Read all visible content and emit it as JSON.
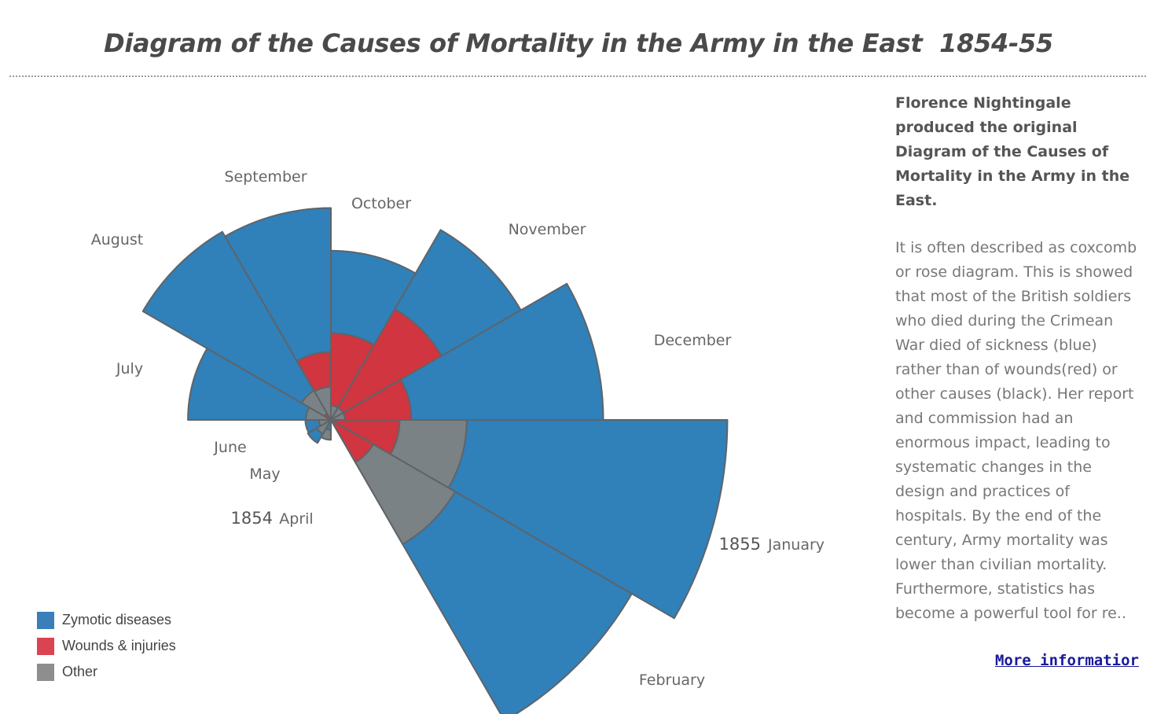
{
  "page": {
    "title": "Diagram of the Causes of Mortality in the Army in the East  1854-55",
    "intro": "Florence Nightingale produced the original Diagram of the Causes of Mortality in the Army in the East.",
    "body": "It is often described as coxcomb or rose diagram. This is showed that most of the British soldiers who died during the Crimean War died of sickness (blue) rather than of wounds(red) or other causes (black). Her report and commission had an enormous impact, leading to systematic changes in the design and practices of hospitals. By the end of the century, Army mortality was lower than civilian mortality. Furthermore, statistics has become a powerful tool for re..",
    "more_link": "More informatior"
  },
  "chart_data": {
    "type": "polar-area",
    "title": "Diagram of the Causes of Mortality in the Army in the East  1854-55",
    "year_labels": [
      {
        "year": "1854",
        "month": "April"
      },
      {
        "year": "1855",
        "month": "January"
      }
    ],
    "categories": [
      "April",
      "May",
      "June",
      "July",
      "August",
      "September",
      "October",
      "November",
      "December",
      "January",
      "February"
    ],
    "series": [
      {
        "name": "Zymotic diseases",
        "color": "#3080BA",
        "values": [
          1.8,
          12.5,
          11.5,
          359,
          828,
          788,
          503,
          845,
          1303,
          2761,
          2120
        ]
      },
      {
        "name": "Wounds & injuries",
        "color": "#D03540",
        "values": [
          0,
          0,
          0,
          0,
          1,
          81,
          132,
          287,
          114,
          83,
          42
        ]
      },
      {
        "name": "Other",
        "color": "#7A8286",
        "values": [
          7,
          4.6,
          2.5,
          11,
          20,
          19,
          3.5,
          3.5,
          3.5,
          324,
          361
        ]
      }
    ],
    "legend": [
      {
        "label": "Zymotic diseases",
        "color": "#3A7FBA"
      },
      {
        "label": "Wounds & injuries",
        "color": "#DA4352"
      },
      {
        "label": "Other",
        "color": "#8E8E8E"
      }
    ],
    "legend_position": "bottom-left",
    "grid": false
  }
}
